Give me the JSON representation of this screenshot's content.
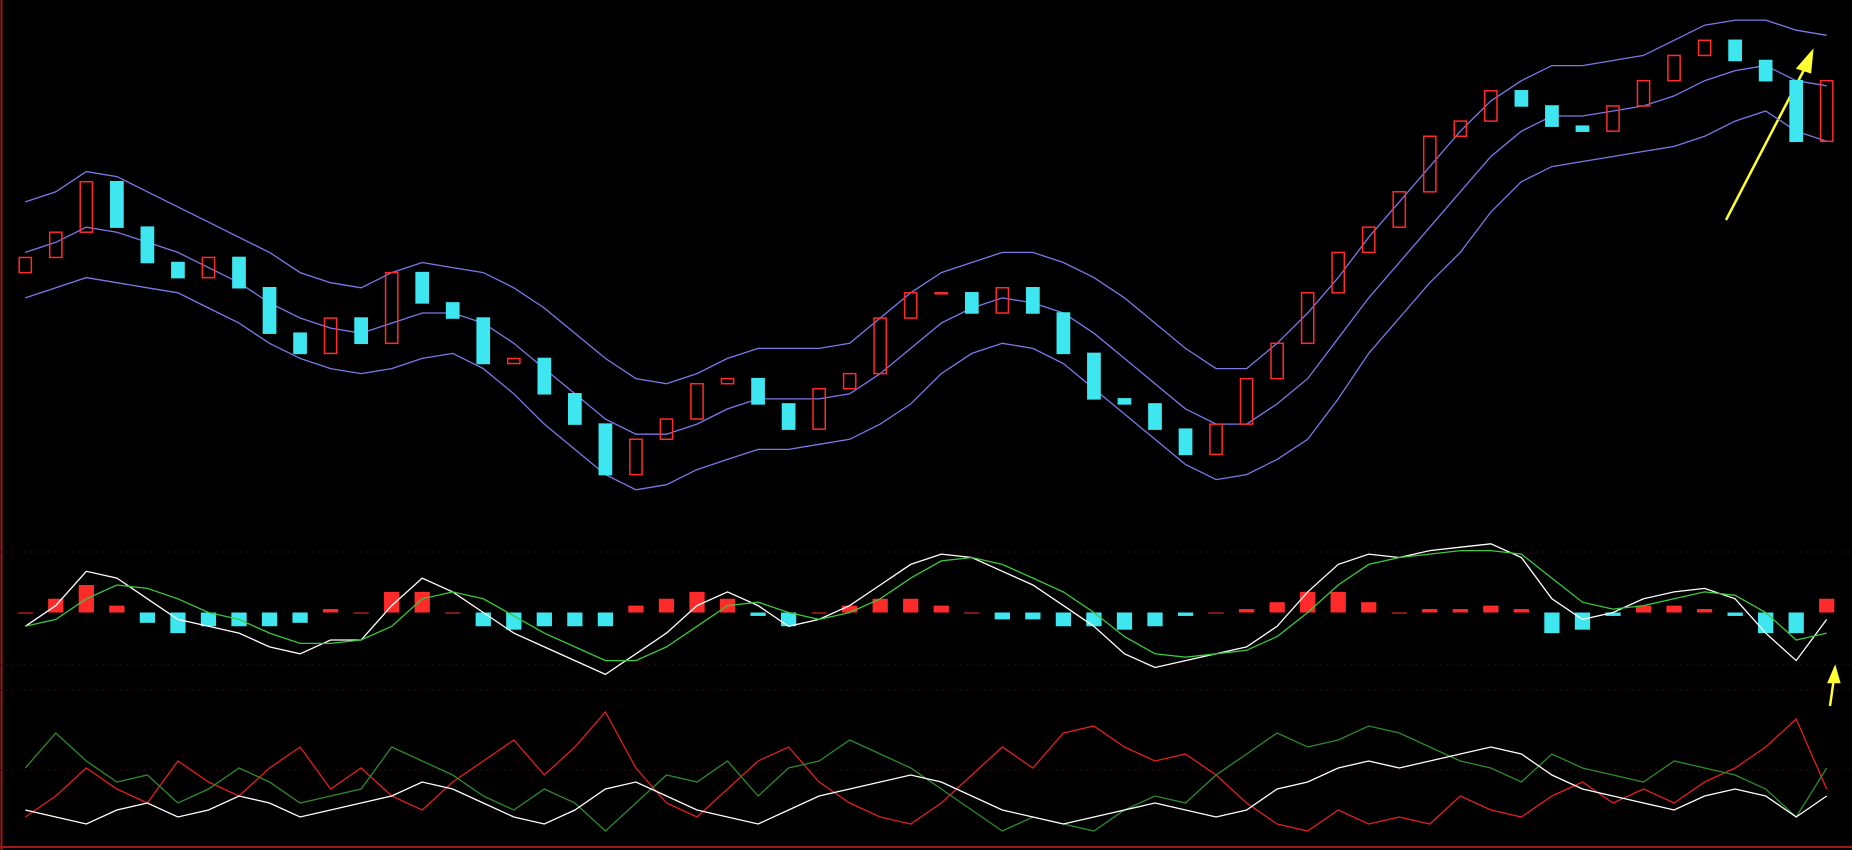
{
  "chart_data": [
    {
      "type": "candlestick",
      "open": [
        48,
        51,
        56,
        66,
        57,
        50,
        47,
        51,
        45,
        36,
        32,
        39,
        34,
        48,
        42,
        39,
        30,
        31,
        24,
        18,
        8,
        15,
        19,
        26,
        27,
        22,
        17,
        25,
        28,
        39,
        44,
        44,
        40,
        45,
        40,
        32,
        23,
        22,
        17,
        12,
        18,
        27,
        34,
        44,
        52,
        57,
        64,
        75,
        78,
        84,
        81,
        77,
        76,
        81,
        86,
        91,
        94,
        90,
        86,
        74
      ],
      "close": [
        51,
        56,
        66,
        57,
        50,
        47,
        51,
        45,
        36,
        32,
        39,
        34,
        48,
        42,
        39,
        30,
        31,
        24,
        18,
        8,
        15,
        19,
        26,
        27,
        22,
        17,
        25,
        28,
        39,
        44,
        44,
        40,
        45,
        40,
        32,
        23,
        22,
        17,
        12,
        18,
        27,
        34,
        44,
        52,
        57,
        64,
        75,
        78,
        84,
        81,
        77,
        76,
        81,
        86,
        91,
        94,
        90,
        86,
        74,
        86
      ],
      "up_color": "#ff2a2a",
      "down_color": "#3ee6f0",
      "ylim": [
        0,
        100
      ],
      "series": [
        {
          "color": "#7b78e8",
          "values": [
            62,
            64,
            68,
            67,
            64,
            61,
            58,
            55,
            52,
            48,
            46,
            45,
            48,
            50,
            49,
            48,
            45,
            41,
            36,
            31,
            27,
            26,
            28,
            31,
            33,
            33,
            33,
            34,
            39,
            44,
            48,
            50,
            52,
            52,
            50,
            47,
            43,
            38,
            33,
            29,
            29,
            34,
            40,
            47,
            55,
            62,
            69,
            76,
            82,
            86,
            89,
            89,
            90,
            91,
            94,
            97,
            98,
            98,
            96,
            95
          ]
        },
        {
          "color": "#7b78e8",
          "values": [
            52,
            54,
            57,
            56,
            54,
            52,
            49,
            46,
            42,
            39,
            37,
            36,
            38,
            40,
            40,
            38,
            34,
            29,
            24,
            19,
            16,
            16,
            18,
            21,
            23,
            23,
            23,
            24,
            28,
            33,
            38,
            41,
            43,
            42,
            40,
            36,
            31,
            26,
            21,
            18,
            18,
            22,
            27,
            35,
            43,
            50,
            57,
            64,
            71,
            76,
            79,
            79,
            80,
            81,
            83,
            86,
            88,
            89,
            86,
            85
          ]
        },
        {
          "color": "#7b78e8",
          "values": [
            43,
            45,
            47,
            46,
            45,
            44,
            41,
            38,
            34,
            31,
            29,
            28,
            29,
            31,
            32,
            29,
            24,
            18,
            13,
            8,
            5,
            6,
            9,
            11,
            13,
            13,
            14,
            15,
            18,
            22,
            28,
            32,
            34,
            33,
            30,
            25,
            20,
            15,
            10,
            7,
            8,
            11,
            15,
            23,
            32,
            39,
            46,
            52,
            60,
            66,
            69,
            70,
            71,
            72,
            73,
            75,
            78,
            80,
            76,
            74
          ]
        }
      ]
    },
    {
      "type": "macd",
      "ylim": [
        -1.2,
        1.2
      ],
      "bars": {
        "up_color": "#ff2a2a",
        "down_color": "#3ee6f0",
        "values": [
          0,
          0.2,
          0.4,
          0.1,
          -0.15,
          -0.3,
          -0.2,
          -0.2,
          -0.2,
          -0.15,
          0.05,
          0,
          0.3,
          0.3,
          0,
          -0.2,
          -0.25,
          -0.2,
          -0.2,
          -0.2,
          0.1,
          0.2,
          0.3,
          0.2,
          -0.05,
          -0.2,
          0,
          0.1,
          0.2,
          0.2,
          0.1,
          0,
          -0.1,
          -0.1,
          -0.2,
          -0.2,
          -0.25,
          -0.2,
          -0.05,
          0,
          0.05,
          0.15,
          0.3,
          0.3,
          0.15,
          0,
          0.05,
          0.05,
          0.1,
          0.05,
          -0.3,
          -0.25,
          -0.05,
          0.1,
          0.1,
          0.05,
          -0.05,
          -0.3,
          -0.3,
          0.2
        ]
      },
      "series": [
        {
          "color": "#ffffff",
          "values": [
            -0.2,
            0.1,
            0.6,
            0.5,
            0.2,
            -0.1,
            -0.2,
            -0.3,
            -0.5,
            -0.6,
            -0.4,
            -0.4,
            0.1,
            0.5,
            0.3,
            0,
            -0.3,
            -0.5,
            -0.7,
            -0.9,
            -0.6,
            -0.3,
            0.1,
            0.3,
            0.1,
            -0.2,
            -0.1,
            0.1,
            0.4,
            0.7,
            0.85,
            0.8,
            0.6,
            0.4,
            0.1,
            -0.2,
            -0.6,
            -0.8,
            -0.7,
            -0.6,
            -0.5,
            -0.2,
            0.3,
            0.7,
            0.85,
            0.8,
            0.9,
            0.95,
            1.0,
            0.8,
            0.2,
            -0.1,
            0,
            0.2,
            0.3,
            0.35,
            0.2,
            -0.3,
            -0.7,
            -0.1
          ]
        },
        {
          "color": "#3cc83c",
          "values": [
            -0.2,
            -0.1,
            0.2,
            0.4,
            0.35,
            0.2,
            0,
            -0.1,
            -0.3,
            -0.45,
            -0.45,
            -0.4,
            -0.2,
            0.2,
            0.3,
            0.2,
            -0.05,
            -0.3,
            -0.5,
            -0.7,
            -0.7,
            -0.5,
            -0.2,
            0.1,
            0.15,
            0,
            -0.1,
            0,
            0.2,
            0.5,
            0.75,
            0.8,
            0.7,
            0.5,
            0.3,
            0,
            -0.35,
            -0.6,
            -0.65,
            -0.6,
            -0.55,
            -0.35,
            0,
            0.4,
            0.7,
            0.8,
            0.85,
            0.9,
            0.9,
            0.85,
            0.5,
            0.15,
            0.05,
            0.1,
            0.2,
            0.3,
            0.25,
            0,
            -0.4,
            -0.3
          ]
        }
      ]
    },
    {
      "type": "line",
      "ylim": [
        0,
        100
      ],
      "series": [
        {
          "color": "#e02020",
          "values": [
            20,
            35,
            55,
            40,
            30,
            60,
            45,
            35,
            55,
            70,
            40,
            55,
            35,
            25,
            45,
            60,
            75,
            50,
            70,
            95,
            55,
            30,
            20,
            40,
            60,
            70,
            45,
            30,
            20,
            15,
            30,
            50,
            70,
            55,
            80,
            85,
            70,
            60,
            65,
            50,
            30,
            15,
            10,
            25,
            15,
            20,
            15,
            35,
            25,
            20,
            35,
            45,
            30,
            40,
            30,
            45,
            55,
            70,
            90,
            40
          ]
        },
        {
          "color": "#2e8a2e",
          "values": [
            55,
            80,
            60,
            45,
            50,
            30,
            40,
            55,
            45,
            30,
            35,
            40,
            70,
            60,
            50,
            35,
            25,
            40,
            30,
            10,
            30,
            50,
            45,
            60,
            35,
            55,
            60,
            75,
            65,
            55,
            40,
            25,
            10,
            20,
            15,
            10,
            25,
            35,
            30,
            50,
            65,
            80,
            70,
            75,
            85,
            80,
            70,
            60,
            55,
            45,
            65,
            55,
            50,
            45,
            60,
            55,
            50,
            40,
            20,
            55
          ]
        },
        {
          "color": "#ffffff",
          "values": [
            25,
            20,
            15,
            25,
            30,
            20,
            25,
            35,
            30,
            20,
            25,
            30,
            35,
            45,
            40,
            30,
            20,
            15,
            25,
            40,
            45,
            35,
            25,
            20,
            15,
            25,
            35,
            40,
            45,
            50,
            45,
            35,
            25,
            20,
            15,
            20,
            25,
            30,
            25,
            20,
            25,
            40,
            45,
            55,
            60,
            55,
            60,
            65,
            70,
            65,
            50,
            40,
            35,
            30,
            25,
            35,
            40,
            35,
            20,
            35
          ]
        }
      ]
    }
  ]
}
